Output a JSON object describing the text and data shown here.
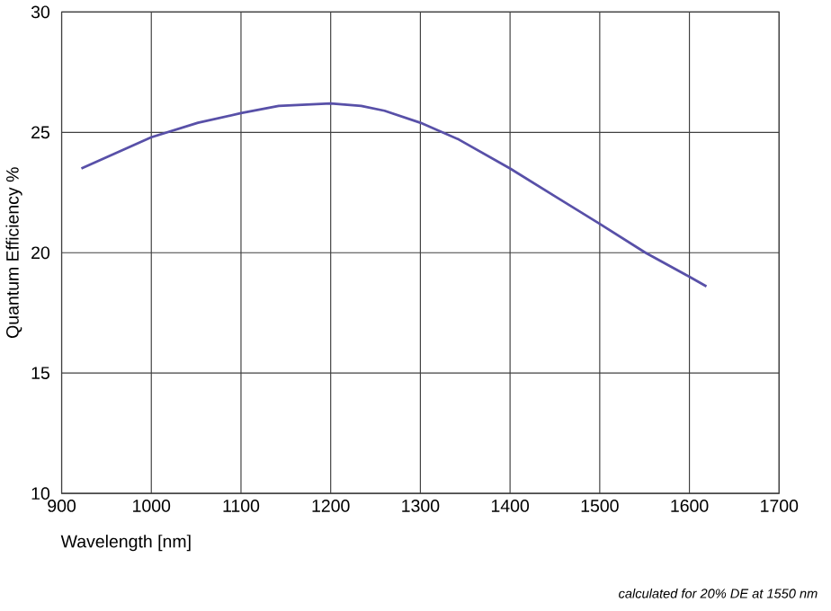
{
  "chart_data": {
    "type": "line",
    "xlabel": "Wavelength [nm]",
    "ylabel": "Quantum Efficiency %",
    "annotations": [
      "calculated for 20% DE at 1550 nm"
    ],
    "x": [
      922,
      1000,
      1052,
      1100,
      1142,
      1200,
      1234,
      1260,
      1300,
      1343,
      1400,
      1452,
      1500,
      1551,
      1600,
      1619
    ],
    "series": [
      {
        "color": "#5850a8",
        "values": [
          23.5,
          24.8,
          25.4,
          25.8,
          26.1,
          26.2,
          26.1,
          25.9,
          25.4,
          24.7,
          23.5,
          22.3,
          21.2,
          20.0,
          19.0,
          18.6
        ]
      }
    ],
    "xlim": [
      900,
      1700
    ],
    "xticks": [
      900,
      1000,
      1100,
      1200,
      1300,
      1400,
      1500,
      1600,
      1700
    ],
    "ylim": [
      10,
      30
    ],
    "yticks": [
      10,
      15,
      20,
      25,
      30
    ],
    "grid": true,
    "marker": "none",
    "line_style": "solid"
  }
}
